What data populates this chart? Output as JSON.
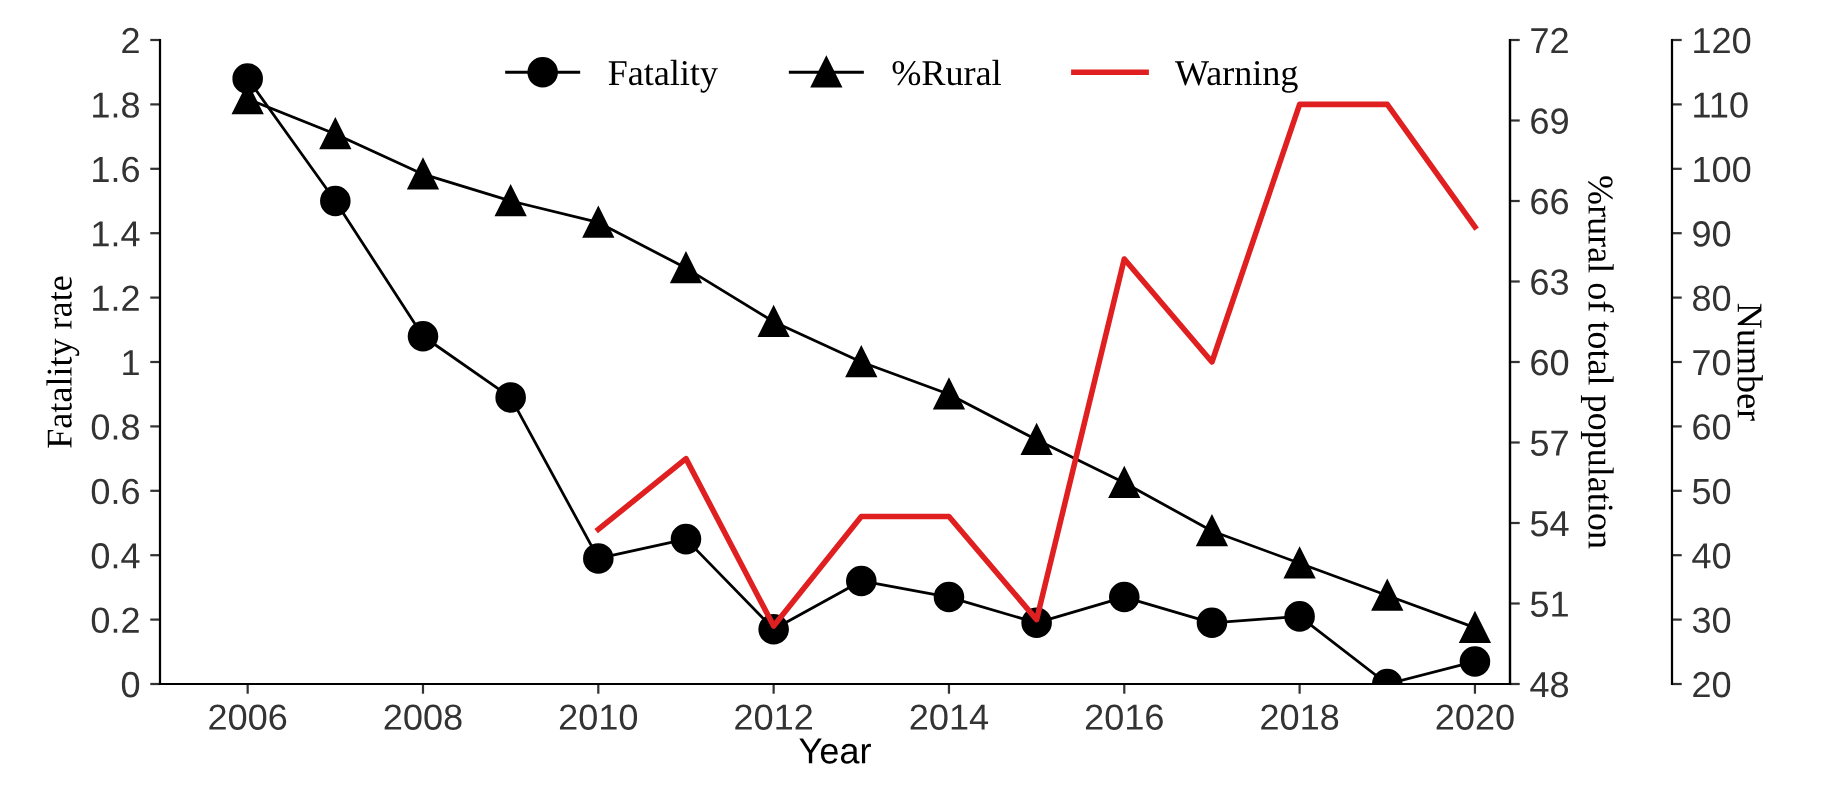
{
  "chart_data": {
    "type": "line",
    "xlabel": "Year",
    "ylabel": "Fatality rate",
    "y2label": "%rural of total population",
    "y3label": "Number",
    "x": [
      2006,
      2007,
      2008,
      2009,
      2010,
      2011,
      2012,
      2013,
      2014,
      2015,
      2016,
      2017,
      2018,
      2019,
      2020
    ],
    "series": [
      {
        "name": "Fatality",
        "color": "#000000",
        "axis": "y",
        "marker": "circle",
        "values": [
          1.88,
          1.5,
          1.08,
          0.89,
          0.39,
          0.45,
          0.17,
          0.32,
          0.27,
          0.19,
          0.27,
          0.19,
          0.21,
          0.0,
          0.07
        ]
      },
      {
        "name": "%Rural",
        "color": "#000000",
        "axis": "y2",
        "marker": "triangle",
        "values": [
          69.8,
          68.5,
          67.0,
          66.0,
          65.2,
          63.5,
          61.5,
          60.0,
          58.8,
          57.1,
          55.5,
          53.7,
          52.5,
          51.3,
          50.1
        ]
      },
      {
        "name": "Warning",
        "color": "#e02020",
        "axis": "y3",
        "marker": "none",
        "values": [
          null,
          null,
          null,
          null,
          44,
          55,
          29,
          46,
          46,
          30,
          86,
          70,
          110,
          110,
          91
        ]
      }
    ],
    "xlim": [
      2005,
      2020.4
    ],
    "xticks": [
      2006,
      2008,
      2010,
      2012,
      2014,
      2016,
      2018,
      2020
    ],
    "ylim": [
      0,
      2
    ],
    "yticks": [
      0,
      0.2,
      0.4,
      0.6,
      0.8,
      1,
      1.2,
      1.4,
      1.6,
      1.8,
      2
    ],
    "y2lim": [
      48,
      72
    ],
    "y2ticks": [
      48,
      51,
      54,
      57,
      60,
      63,
      66,
      69,
      72
    ],
    "y3lim": [
      20,
      120
    ],
    "y3ticks": [
      20,
      30,
      40,
      50,
      60,
      70,
      80,
      90,
      100,
      110,
      120
    ],
    "legend": "top",
    "grid": false
  }
}
